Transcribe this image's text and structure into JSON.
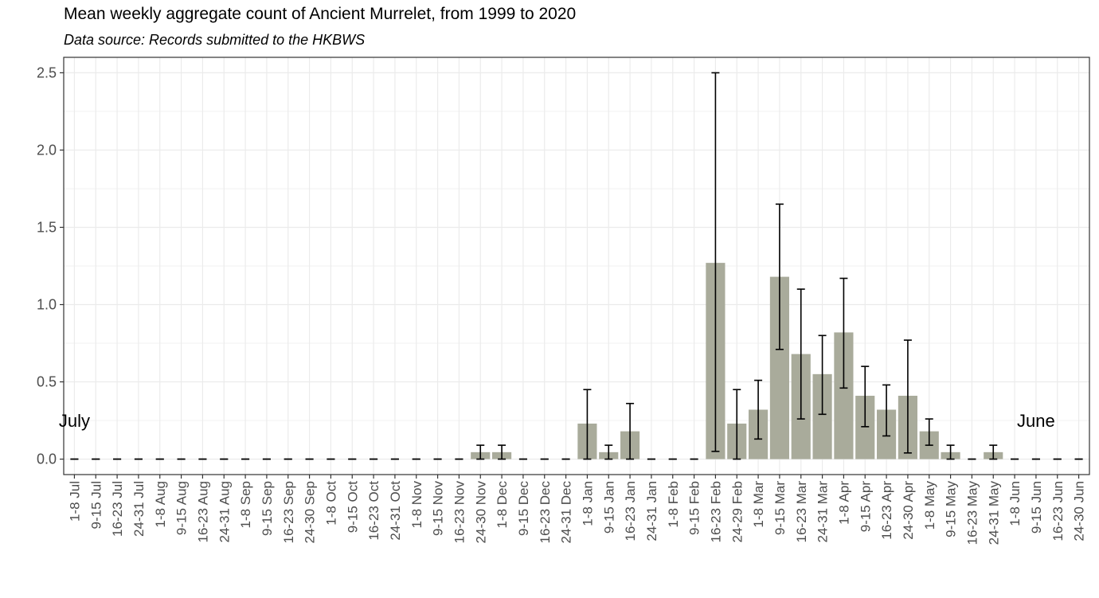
{
  "chart_data": {
    "type": "bar",
    "title": "Mean weekly aggregate count of Ancient Murrelet, from 1999 to 2020",
    "subtitle": "Data source: Records submitted to the HKBWS",
    "xlabel": "",
    "ylabel": "",
    "ylim": [
      -0.1,
      2.6
    ],
    "yticks": [
      0.0,
      0.5,
      1.0,
      1.5,
      2.0,
      2.5
    ],
    "ytick_labels": [
      "0.0",
      "0.5",
      "1.0",
      "1.5",
      "2.0",
      "2.5"
    ],
    "grid": true,
    "bar_color": "#a9ab9b",
    "error_bar_color": "#000000",
    "annotations": [
      {
        "text": "July",
        "x": "1-8 Jul",
        "y": 0.25
      },
      {
        "text": "June",
        "x": "9-15 Jun",
        "y": 0.25
      }
    ],
    "categories": [
      "1-8 Jul",
      "9-15 Jul",
      "16-23 Jul",
      "24-31 Jul",
      "1-8 Aug",
      "9-15 Aug",
      "16-23 Aug",
      "24-31 Aug",
      "1-8 Sep",
      "9-15 Sep",
      "16-23 Sep",
      "24-30 Sep",
      "1-8 Oct",
      "9-15 Oct",
      "16-23 Oct",
      "24-31 Oct",
      "1-8 Nov",
      "9-15 Nov",
      "16-23 Nov",
      "24-30 Nov",
      "1-8 Dec",
      "9-15 Dec",
      "16-23 Dec",
      "24-31 Dec",
      "1-8 Jan",
      "9-15 Jan",
      "16-23 Jan",
      "24-31 Jan",
      "1-8 Feb",
      "9-15 Feb",
      "16-23 Feb",
      "24-29 Feb",
      "1-8 Mar",
      "9-15 Mar",
      "16-23 Mar",
      "24-31 Mar",
      "1-8 Apr",
      "9-15 Apr",
      "16-23 Apr",
      "24-30 Apr",
      "1-8 May",
      "9-15 May",
      "16-23 May",
      "24-31 May",
      "1-8 Jun",
      "9-15 Jun",
      "16-23 Jun",
      "24-30 Jun"
    ],
    "values": [
      0,
      0,
      0,
      0,
      0,
      0,
      0,
      0,
      0,
      0,
      0,
      0,
      0,
      0,
      0,
      0,
      0,
      0,
      0,
      0.045,
      0.045,
      0,
      0,
      0,
      0.23,
      0.045,
      0.18,
      0,
      0,
      0,
      1.27,
      0.23,
      0.32,
      1.18,
      0.68,
      0.55,
      0.82,
      0.41,
      0.32,
      0.41,
      0.18,
      0.045,
      0,
      0.045,
      0,
      0,
      0,
      0
    ],
    "error_low": [
      0,
      0,
      0,
      0,
      0,
      0,
      0,
      0,
      0,
      0,
      0,
      0,
      0,
      0,
      0,
      0,
      0,
      0,
      0,
      0,
      0,
      0,
      0,
      0,
      0,
      0,
      0,
      0,
      0,
      0,
      0.05,
      0,
      0.13,
      0.71,
      0.26,
      0.29,
      0.46,
      0.21,
      0.15,
      0.04,
      0.09,
      0,
      0,
      0,
      0,
      0,
      0,
      0
    ],
    "error_high": [
      0,
      0,
      0,
      0,
      0,
      0,
      0,
      0,
      0,
      0,
      0,
      0,
      0,
      0,
      0,
      0,
      0,
      0,
      0,
      0.09,
      0.09,
      0,
      0,
      0,
      0.45,
      0.09,
      0.36,
      0,
      0,
      0,
      2.5,
      0.45,
      0.51,
      1.65,
      1.1,
      0.8,
      1.17,
      0.6,
      0.48,
      0.77,
      0.26,
      0.09,
      0,
      0.09,
      0,
      0,
      0,
      0
    ]
  }
}
